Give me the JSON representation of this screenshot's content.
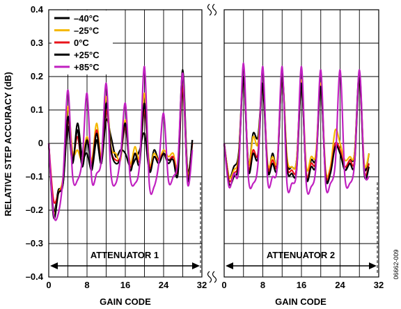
{
  "chart_data": {
    "type": "line",
    "ylabel": "RELATIVE STEP ACCURACY (dB)",
    "ylim": [
      -0.4,
      0.4
    ],
    "y_ticks": [
      "0.4",
      "0.3",
      "0.2",
      "0.1",
      "0",
      "–0.1",
      "–0.2",
      "–0.3",
      "–0.4"
    ],
    "grid": true,
    "legend_position": "top-left",
    "figure_id": "06662-009",
    "panels": [
      {
        "xlabel": "GAIN CODE",
        "xlim": [
          0,
          32
        ],
        "x_ticks": [
          "0",
          "8",
          "16",
          "24",
          "32"
        ],
        "annotation": "ATTENUATOR 1",
        "series": [
          {
            "name": "–40°C",
            "color": "#000000",
            "x": [
              0,
              1,
              2,
              3,
              4,
              5,
              6,
              7,
              8,
              9,
              10,
              11,
              12,
              13,
              14,
              15,
              16,
              17,
              18,
              19,
              20,
              21,
              22,
              23,
              24,
              25,
              26,
              27,
              28,
              29,
              30
            ],
            "y": [
              0,
              -0.2,
              -0.14,
              -0.12,
              0.05,
              -0.06,
              0.06,
              -0.04,
              -0.03,
              -0.08,
              0.01,
              -0.06,
              0.07,
              0.02,
              -0.04,
              -0.02,
              -0.03,
              -0.07,
              -0.05,
              -0.02,
              0.03,
              -0.08,
              -0.02,
              -0.05,
              -0.03,
              -0.06,
              -0.04,
              -0.06,
              0.22,
              -0.08,
              0.01
            ]
          },
          {
            "name": "–25°C",
            "color": "#f5b800",
            "x": [
              0,
              1,
              2,
              3,
              4,
              5,
              6,
              7,
              8,
              9,
              10,
              11,
              12,
              13,
              14,
              15,
              16,
              17,
              18,
              19,
              20,
              21,
              22,
              23,
              24,
              25,
              26,
              27,
              28,
              29,
              30
            ],
            "y": [
              0,
              -0.21,
              -0.15,
              -0.1,
              0.11,
              -0.03,
              -0.02,
              -0.05,
              0.02,
              -0.05,
              0.06,
              -0.04,
              0.14,
              -0.01,
              -0.03,
              -0.05,
              0.07,
              -0.06,
              -0.01,
              -0.04,
              0.15,
              -0.06,
              -0.03,
              -0.05,
              -0.02,
              -0.04,
              -0.03,
              -0.07,
              0.19,
              -0.09,
              0
            ]
          },
          {
            "name": "0°C",
            "color": "#e8141b",
            "x": [
              0,
              1,
              2,
              3,
              4,
              5,
              6,
              7,
              8,
              9,
              10,
              11,
              12,
              13,
              14,
              15,
              16,
              17,
              18,
              19,
              20,
              21,
              22,
              23,
              24,
              25,
              26,
              27,
              28,
              29,
              30
            ],
            "y": [
              0,
              -0.17,
              -0.15,
              -0.11,
              0.07,
              -0.04,
              0.02,
              -0.06,
              0.01,
              -0.06,
              0.04,
              -0.05,
              0.1,
              -0.02,
              -0.05,
              -0.04,
              0.05,
              -0.07,
              -0.03,
              -0.05,
              0.1,
              -0.07,
              -0.04,
              -0.05,
              -0.03,
              -0.05,
              -0.04,
              -0.08,
              0.17,
              -0.1,
              0
            ]
          },
          {
            "name": "+25°C",
            "color": "#000000",
            "x": [
              0,
              1,
              2,
              3,
              4,
              5,
              6,
              7,
              8,
              9,
              10,
              11,
              12,
              13,
              14,
              15,
              16,
              17,
              18,
              19,
              20,
              21,
              22,
              23,
              24,
              25,
              26,
              27,
              28,
              29,
              30
            ],
            "y": [
              0,
              -0.22,
              -0.15,
              -0.12,
              0.08,
              -0.05,
              0.04,
              -0.07,
              0.01,
              -0.07,
              0.03,
              -0.06,
              0.12,
              -0.02,
              -0.06,
              -0.04,
              0.06,
              -0.08,
              -0.03,
              -0.06,
              0.12,
              -0.08,
              -0.04,
              -0.06,
              -0.03,
              -0.05,
              -0.05,
              -0.09,
              0.2,
              -0.11,
              0.01
            ]
          },
          {
            "name": "+85°C",
            "color": "#c020c0",
            "x": [
              0,
              1,
              2,
              3,
              4,
              5,
              6,
              7,
              8,
              9,
              10,
              11,
              12,
              13,
              14,
              15,
              16,
              17,
              18,
              19,
              20,
              21,
              22,
              23,
              24,
              25,
              26,
              27,
              28,
              29,
              30
            ],
            "y": [
              0,
              -0.21,
              -0.21,
              -0.1,
              0.16,
              -0.1,
              -0.11,
              -0.05,
              0.15,
              -0.11,
              -0.09,
              -0.05,
              0.18,
              -0.09,
              -0.12,
              -0.04,
              0.12,
              -0.1,
              -0.12,
              -0.06,
              0.23,
              -0.12,
              -0.13,
              -0.06,
              0.09,
              -0.11,
              -0.1,
              -0.05,
              0.21,
              -0.12,
              -0.02
            ]
          }
        ]
      },
      {
        "xlabel": "GAIN CODE",
        "xlim": [
          0,
          32
        ],
        "x_ticks": [
          "0",
          "8",
          "16",
          "24",
          "32"
        ],
        "annotation": "ATTENUATOR 2",
        "series": [
          {
            "name": "–40°C",
            "color": "#000000",
            "x": [
              0,
              1,
              2,
              3,
              4,
              5,
              6,
              7,
              8,
              9,
              10,
              11,
              12,
              13,
              14,
              15,
              16,
              17,
              18,
              19,
              20,
              21,
              22,
              23,
              24,
              25,
              26,
              27,
              28,
              29,
              30
            ],
            "y": [
              0,
              -0.1,
              -0.07,
              -0.03,
              0.2,
              -0.06,
              0.03,
              0.02,
              0.17,
              -0.08,
              -0.03,
              -0.06,
              0.2,
              -0.05,
              -0.07,
              -0.05,
              0.19,
              -0.1,
              -0.05,
              -0.04,
              0.18,
              -0.1,
              -0.08,
              0,
              -0.03,
              -0.08,
              -0.05,
              -0.03,
              0.21,
              -0.07,
              -0.03
            ]
          },
          {
            "name": "–25°C",
            "color": "#f5b800",
            "x": [
              0,
              1,
              2,
              3,
              4,
              5,
              6,
              7,
              8,
              9,
              10,
              11,
              12,
              13,
              14,
              15,
              16,
              17,
              18,
              19,
              20,
              21,
              22,
              23,
              24,
              25,
              26,
              27,
              28,
              29,
              30
            ],
            "y": [
              0,
              -0.1,
              -0.08,
              -0.04,
              0.2,
              -0.06,
              0.02,
              0,
              0.18,
              -0.06,
              -0.04,
              -0.05,
              0.2,
              -0.04,
              -0.07,
              -0.05,
              0.19,
              -0.07,
              -0.04,
              -0.03,
              0.18,
              -0.08,
              -0.07,
              0.04,
              0,
              -0.05,
              -0.04,
              -0.03,
              0.2,
              -0.06,
              -0.03
            ]
          },
          {
            "name": "0°C",
            "color": "#e8141b",
            "x": [
              0,
              1,
              2,
              3,
              4,
              5,
              6,
              7,
              8,
              9,
              10,
              11,
              12,
              13,
              14,
              15,
              16,
              17,
              18,
              19,
              20,
              21,
              22,
              23,
              24,
              25,
              26,
              27,
              28,
              29,
              30
            ],
            "y": [
              0,
              -0.11,
              -0.09,
              -0.05,
              0.2,
              -0.07,
              -0.02,
              -0.03,
              0.18,
              -0.07,
              -0.05,
              -0.06,
              0.2,
              -0.06,
              -0.08,
              -0.07,
              0.18,
              -0.09,
              -0.06,
              -0.05,
              0.17,
              -0.09,
              -0.08,
              0,
              -0.02,
              -0.07,
              -0.05,
              -0.05,
              0.2,
              -0.08,
              -0.06
            ]
          },
          {
            "name": "+25°C",
            "color": "#000000",
            "x": [
              0,
              1,
              2,
              3,
              4,
              5,
              6,
              7,
              8,
              9,
              10,
              11,
              12,
              13,
              14,
              15,
              16,
              17,
              18,
              19,
              20,
              21,
              22,
              23,
              24,
              25,
              26,
              27,
              28,
              29,
              30
            ],
            "y": [
              0,
              -0.12,
              -0.1,
              -0.06,
              0.2,
              -0.08,
              -0.03,
              -0.04,
              0.18,
              -0.08,
              -0.06,
              -0.07,
              0.2,
              -0.07,
              -0.09,
              -0.08,
              0.18,
              -0.1,
              -0.07,
              -0.06,
              0.17,
              -0.1,
              -0.09,
              -0.01,
              -0.03,
              -0.08,
              -0.06,
              -0.06,
              0.2,
              -0.09,
              -0.07
            ]
          },
          {
            "name": "+85°C",
            "color": "#c020c0",
            "x": [
              0,
              1,
              2,
              3,
              4,
              5,
              6,
              7,
              8,
              9,
              10,
              11,
              12,
              13,
              14,
              15,
              16,
              17,
              18,
              19,
              20,
              21,
              22,
              23,
              24,
              25,
              26,
              27,
              28,
              29,
              30
            ],
            "y": [
              0,
              -0.13,
              -0.09,
              -0.08,
              0.24,
              -0.1,
              -0.12,
              -0.06,
              0.23,
              -0.11,
              -0.1,
              -0.07,
              0.23,
              -0.12,
              -0.12,
              -0.08,
              0.23,
              -0.12,
              -0.13,
              -0.07,
              0.22,
              -0.12,
              -0.12,
              -0.06,
              0.22,
              -0.1,
              -0.12,
              -0.06,
              0.22,
              -0.08,
              -0.1
            ]
          }
        ]
      }
    ]
  }
}
